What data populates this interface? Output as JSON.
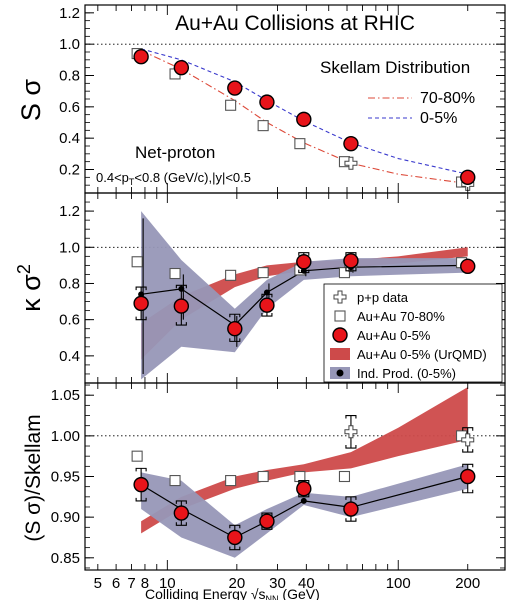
{
  "figure_title": "Au+Au Collisions at RHIC",
  "x_axis": {
    "label_main": "Colliding Energy ",
    "label_sqrt": "√",
    "label_s": "s",
    "label_sub": "NN",
    "label_unit": " (GeV)",
    "scale": "log",
    "range": [
      4.4,
      290
    ],
    "tick_labels": [
      {
        "value": 5,
        "text": "5"
      },
      {
        "value": 6,
        "text": "6"
      },
      {
        "value": 7,
        "text": "7"
      },
      {
        "value": 8,
        "text": "8"
      },
      {
        "value": 10,
        "text": "10"
      },
      {
        "value": 20,
        "text": "20"
      },
      {
        "value": 30,
        "text": "30"
      },
      {
        "value": 40,
        "text": "40"
      },
      {
        "value": 100,
        "text": "100"
      },
      {
        "value": 200,
        "text": "200"
      }
    ]
  },
  "colors": {
    "red_marker": "#e8141a",
    "urqmd_band": "#cd4a4a",
    "ind_band": "#9797b7",
    "blue_dashed": "#3a3acd",
    "red_dashdot": "#dd4a3a"
  },
  "legend": [
    {
      "icon": "cross-marker",
      "label": "p+p data"
    },
    {
      "icon": "open-square-marker",
      "label": "Au+Au 70-80%"
    },
    {
      "icon": "red-circle-marker",
      "label": "Au+Au 0-5%"
    },
    {
      "icon": "red-band",
      "label": "Au+Au 0-5% (UrQMD)"
    },
    {
      "icon": "blue-band-dot",
      "label": "Ind. Prod. (0-5%)"
    }
  ],
  "chart_data": [
    {
      "type": "scatter",
      "panel": "top",
      "ylabel": "S σ",
      "ylim": [
        0.05,
        1.25
      ],
      "y_ticks": [
        "0.2",
        "0.4",
        "0.6",
        "0.8",
        "1.0",
        "1.2"
      ],
      "reference_line": 1.0,
      "annotations": {
        "net_proton": "Net-proton",
        "cuts_prefix": "0.4<p",
        "cuts_sub": "T",
        "cuts_suffix": "<0.8 (GeV/c),|y|<0.5",
        "skellam_title": "Skellam Distribution",
        "skellam_70_80": "70-80%",
        "skellam_0_5": "0-5%"
      },
      "series": [
        {
          "name": "Au+Au 0-5%",
          "x": [
            7.7,
            11.5,
            19.6,
            27,
            39,
            62.4,
            200
          ],
          "y": [
            0.92,
            0.85,
            0.72,
            0.63,
            0.52,
            0.365,
            0.15
          ]
        },
        {
          "name": "Au+Au 70-80%",
          "x": [
            7.4,
            10.8,
            18.8,
            26,
            37.5,
            58.5,
            188
          ],
          "y": [
            0.94,
            0.81,
            0.61,
            0.48,
            0.365,
            0.25,
            0.12
          ]
        },
        {
          "name": "p+p data",
          "x": [
            62.4,
            200
          ],
          "y": [
            0.24,
            0.105
          ]
        },
        {
          "name": "0-5%",
          "style": "dashed",
          "x": [
            7.7,
            11.5,
            19.6,
            27,
            39,
            62.4,
            100,
            200
          ],
          "y": [
            0.97,
            0.9,
            0.76,
            0.64,
            0.51,
            0.37,
            0.27,
            0.17
          ]
        },
        {
          "name": "70-80%",
          "style": "dash-dot",
          "x": [
            7.7,
            11.5,
            19.6,
            27,
            39,
            62.4,
            100,
            200
          ],
          "y": [
            0.96,
            0.84,
            0.64,
            0.5,
            0.37,
            0.24,
            0.17,
            0.11
          ]
        }
      ]
    },
    {
      "type": "scatter",
      "panel": "middle",
      "ylabel": "κ σ",
      "ylabel_sup": "2",
      "ylim": [
        0.25,
        1.3
      ],
      "y_ticks": [
        "0.4",
        "0.6",
        "0.8",
        "1.0",
        "1.2"
      ],
      "reference_line": 1.0,
      "series": [
        {
          "name": "Au+Au 0-5%",
          "x": [
            7.7,
            11.5,
            19.6,
            27,
            39,
            62.4,
            200
          ],
          "y": [
            0.69,
            0.675,
            0.55,
            0.68,
            0.92,
            0.925,
            0.895
          ],
          "y_err_low": [
            0.6,
            0.57,
            0.48,
            0.62,
            0.86,
            0.87,
            0.87
          ],
          "y_err_high": [
            0.78,
            0.79,
            0.63,
            0.74,
            0.97,
            0.97,
            0.92
          ]
        },
        {
          "name": "Ind. Prod. (0-5%)",
          "x": [
            7.7,
            11.5,
            19.6,
            27,
            39,
            62.4,
            200
          ],
          "y": [
            0.74,
            0.77,
            0.57,
            0.75,
            0.87,
            0.89,
            0.9
          ],
          "y_err_low": [
            0.3,
            0.6,
            0.45,
            0.7,
            0.84,
            0.86,
            0.88
          ],
          "y_err_high": [
            1.16,
            0.85,
            0.62,
            0.8,
            0.93,
            0.95,
            0.93
          ]
        },
        {
          "name": "Au+Au 70-80%",
          "x": [
            7.4,
            10.8,
            18.8,
            26,
            37.5,
            58.5,
            188
          ],
          "y": [
            0.92,
            0.855,
            0.845,
            0.86,
            0.875,
            0.86,
            0.915
          ]
        },
        {
          "name": "p+p data",
          "x": [
            62.4,
            200
          ],
          "y": [
            0.9,
            0.89
          ]
        }
      ],
      "bands": [
        {
          "name": "Au+Au 0-5% (UrQMD)",
          "x": [
            7.7,
            11.5,
            19.6,
            27,
            39,
            62.4,
            100,
            200
          ],
          "low": [
            0.38,
            0.6,
            0.78,
            0.84,
            0.87,
            0.89,
            0.91,
            0.95
          ],
          "high": [
            0.58,
            0.73,
            0.85,
            0.9,
            0.92,
            0.93,
            0.95,
            1.0
          ]
        },
        {
          "name": "Ind. Prod. (0-5%)",
          "x": [
            7.7,
            11.5,
            19.6,
            27,
            39,
            62.4,
            200
          ],
          "low": [
            0.27,
            0.45,
            0.42,
            0.66,
            0.82,
            0.84,
            0.86
          ],
          "high": [
            1.2,
            0.93,
            0.66,
            0.82,
            0.92,
            0.94,
            0.94
          ]
        }
      ]
    },
    {
      "type": "scatter",
      "panel": "bottom",
      "ylabel": "(S σ)/Skellam",
      "ylim": [
        0.835,
        1.065
      ],
      "y_ticks": [
        "0.85",
        "0.90",
        "0.95",
        "1.00",
        "1.05"
      ],
      "reference_line": 1.0,
      "series": [
        {
          "name": "Au+Au 0-5%",
          "x": [
            7.7,
            11.5,
            19.6,
            27,
            39,
            62.4,
            200
          ],
          "y": [
            0.94,
            0.905,
            0.875,
            0.895,
            0.935,
            0.91,
            0.95
          ],
          "y_err_low": [
            0.92,
            0.89,
            0.86,
            0.885,
            0.925,
            0.895,
            0.93
          ],
          "y_err_high": [
            0.96,
            0.92,
            0.89,
            0.905,
            0.945,
            0.925,
            0.965
          ]
        },
        {
          "name": "Ind. Prod. (0-5%)",
          "x": [
            7.7,
            11.5,
            19.6,
            27,
            39,
            62.4,
            200
          ],
          "y": [
            0.94,
            0.91,
            0.875,
            0.895,
            0.92,
            0.912,
            0.95
          ]
        },
        {
          "name": "Au+Au 70-80%",
          "x": [
            7.4,
            10.8,
            18.8,
            26,
            37.5,
            58.5,
            188
          ],
          "y": [
            0.975,
            0.945,
            0.945,
            0.95,
            0.95,
            0.95,
            1.0
          ]
        },
        {
          "name": "p+p data",
          "x": [
            62.4,
            200
          ],
          "y": [
            1.005,
            0.995
          ],
          "y_err_low": [
            0.985,
            0.98
          ],
          "y_err_high": [
            1.025,
            1.01
          ]
        }
      ],
      "bands": [
        {
          "name": "Au+Au 0-5% (UrQMD)",
          "x": [
            7.7,
            11.5,
            19.6,
            27,
            39,
            62.4,
            100,
            200
          ],
          "low": [
            0.88,
            0.91,
            0.935,
            0.945,
            0.955,
            0.96,
            0.975,
            0.995
          ],
          "high": [
            0.895,
            0.925,
            0.95,
            0.958,
            0.965,
            0.98,
            1.01,
            1.06
          ]
        },
        {
          "name": "Ind. Prod. (0-5%)",
          "x": [
            7.7,
            11.5,
            19.6,
            27,
            39,
            62.4,
            200
          ],
          "low": [
            0.91,
            0.875,
            0.85,
            0.88,
            0.915,
            0.9,
            0.935
          ],
          "high": [
            0.955,
            0.945,
            0.89,
            0.91,
            0.93,
            0.925,
            0.965
          ]
        }
      ]
    }
  ]
}
